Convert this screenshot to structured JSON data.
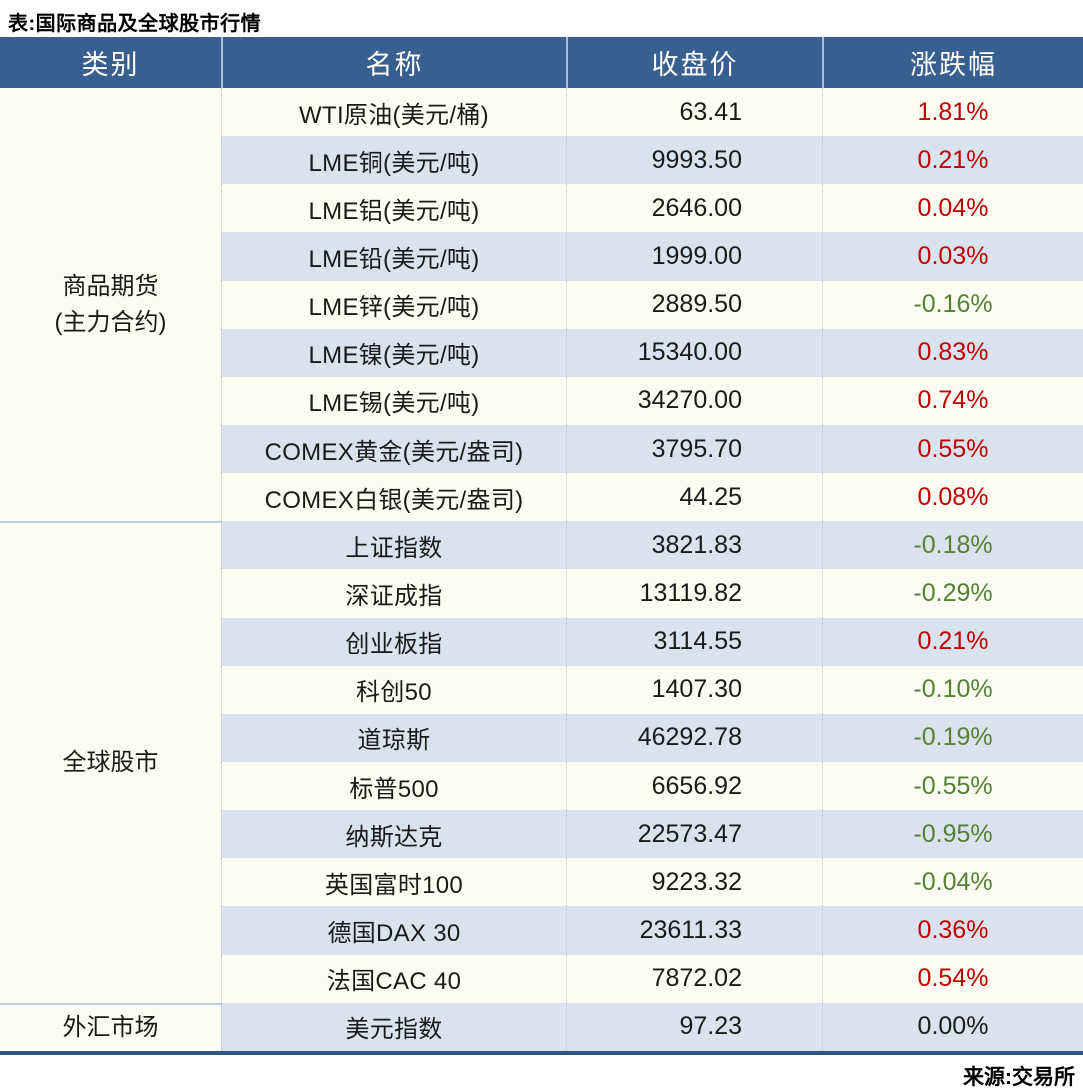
{
  "chart_data": {
    "type": "table",
    "title": "表:国际商品及全球股市行情",
    "source": "来源:交易所",
    "columns": [
      "类别",
      "名称",
      "收盘价",
      "涨跌幅"
    ],
    "sections": [
      {
        "category_lines": [
          "商品期货",
          "(主力合约)"
        ],
        "rows": [
          {
            "name": "WTI原油(美元/桶)",
            "close": "63.41",
            "change": "1.81%",
            "dir": "up"
          },
          {
            "name": "LME铜(美元/吨)",
            "close": "9993.50",
            "change": "0.21%",
            "dir": "up"
          },
          {
            "name": "LME铝(美元/吨)",
            "close": "2646.00",
            "change": "0.04%",
            "dir": "up"
          },
          {
            "name": "LME铅(美元/吨)",
            "close": "1999.00",
            "change": "0.03%",
            "dir": "up"
          },
          {
            "name": "LME锌(美元/吨)",
            "close": "2889.50",
            "change": "-0.16%",
            "dir": "down"
          },
          {
            "name": "LME镍(美元/吨)",
            "close": "15340.00",
            "change": "0.83%",
            "dir": "up"
          },
          {
            "name": "LME锡(美元/吨)",
            "close": "34270.00",
            "change": "0.74%",
            "dir": "up"
          },
          {
            "name": "COMEX黄金(美元/盎司)",
            "close": "3795.70",
            "change": "0.55%",
            "dir": "up"
          },
          {
            "name": "COMEX白银(美元/盎司)",
            "close": "44.25",
            "change": "0.08%",
            "dir": "up"
          }
        ]
      },
      {
        "category_lines": [
          "全球股市"
        ],
        "rows": [
          {
            "name": "上证指数",
            "close": "3821.83",
            "change": "-0.18%",
            "dir": "down"
          },
          {
            "name": "深证成指",
            "close": "13119.82",
            "change": "-0.29%",
            "dir": "down"
          },
          {
            "name": "创业板指",
            "close": "3114.55",
            "change": "0.21%",
            "dir": "up"
          },
          {
            "name": "科创50",
            "close": "1407.30",
            "change": "-0.10%",
            "dir": "down"
          },
          {
            "name": "道琼斯",
            "close": "46292.78",
            "change": "-0.19%",
            "dir": "down"
          },
          {
            "name": "标普500",
            "close": "6656.92",
            "change": "-0.55%",
            "dir": "down"
          },
          {
            "name": "纳斯达克",
            "close": "22573.47",
            "change": "-0.95%",
            "dir": "down"
          },
          {
            "name": "英国富时100",
            "close": "9223.32",
            "change": "-0.04%",
            "dir": "down"
          },
          {
            "name": "德国DAX 30",
            "close": "23611.33",
            "change": "0.36%",
            "dir": "up"
          },
          {
            "name": "法国CAC 40",
            "close": "7872.02",
            "change": "0.54%",
            "dir": "up"
          }
        ]
      },
      {
        "category_lines": [
          "外汇市场"
        ],
        "rows": [
          {
            "name": "美元指数",
            "close": "97.23",
            "change": "0.00%",
            "dir": "flat"
          }
        ]
      }
    ]
  },
  "colors": {
    "header_bg": "#376091",
    "row_bg": "#FCFCF2",
    "row_alt_bg": "#DBE2EF",
    "up": "#C00000",
    "down": "#538135",
    "flat": "#1A1A1A",
    "bottom_border": "#30557F"
  }
}
